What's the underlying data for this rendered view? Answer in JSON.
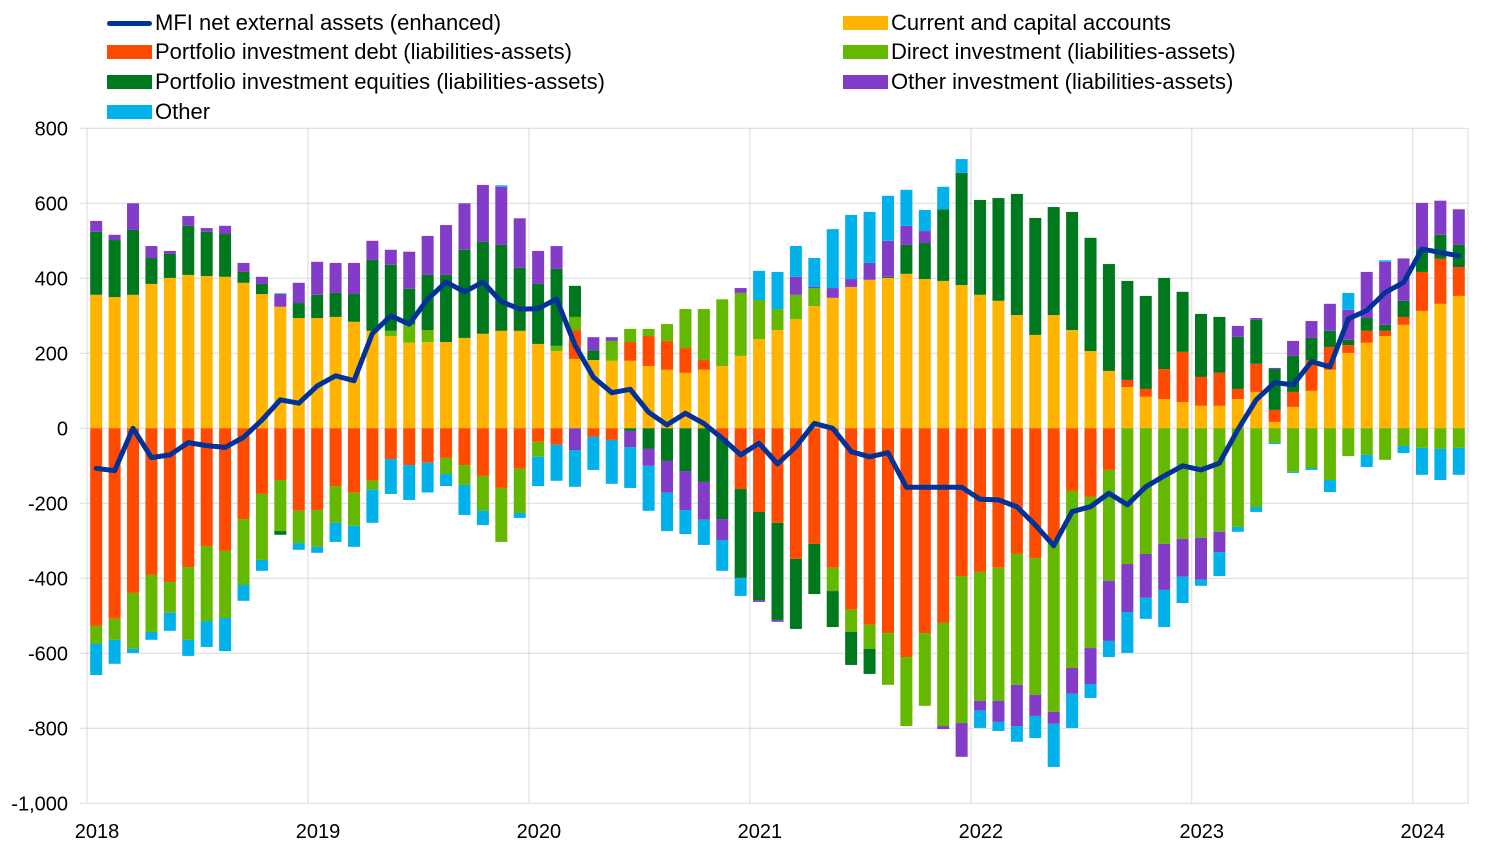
{
  "chart_data": {
    "type": "bar",
    "subtype": "stacked bar with line overlay",
    "title": "",
    "xlabel": "",
    "ylabel": "",
    "ylim": [
      -1000,
      800
    ],
    "yticks": [
      800,
      600,
      400,
      200,
      0,
      -200,
      -400,
      -600,
      -800,
      -1000
    ],
    "ytick_labels": [
      "800",
      "600",
      "400",
      "200",
      "0",
      "-200",
      "-400",
      "-600",
      "-800",
      "-1,000"
    ],
    "xtick_labels": [
      "2018",
      "2019",
      "2020",
      "2021",
      "2022",
      "2023",
      "2024"
    ],
    "grid": true,
    "legend_position": "top",
    "frequency": "monthly",
    "x_start": "2018-01",
    "x_end": "2024-03",
    "bar_series": [
      {
        "name": "Current and capital accounts",
        "color": "#FFB400",
        "values": [
          356,
          350,
          356,
          385,
          401,
          409,
          406,
          404,
          388,
          358,
          324,
          294,
          294,
          297,
          284,
          260,
          246,
          228,
          230,
          230,
          241,
          252,
          260,
          260,
          225,
          206,
          185,
          182,
          180,
          180,
          166,
          156,
          148,
          156,
          166,
          193,
          238,
          262,
          291,
          326,
          348,
          377,
          396,
          401,
          412,
          398,
          393,
          382,
          356,
          340,
          302,
          249,
          302,
          262,
          206,
          153,
          110,
          84,
          78,
          70,
          60,
          60,
          78,
          97,
          17,
          57,
          100,
          156,
          201,
          228,
          246,
          276,
          313,
          332,
          353
        ]
      },
      {
        "name": "Portfolio investment debt (liabilities-assets)",
        "color": "#FF4B00",
        "values": [
          -527,
          -508,
          -439,
          -391,
          -410,
          -370,
          -314,
          -327,
          -242,
          -175,
          -138,
          -220,
          -218,
          -154,
          -172,
          -140,
          -82,
          -98,
          -92,
          -79,
          -98,
          -127,
          -159,
          -108,
          -36,
          -44,
          77,
          -23,
          -31,
          50,
          80,
          77,
          66,
          26,
          -26,
          -162,
          -223,
          -252,
          -348,
          -308,
          -372,
          -484,
          -524,
          -546,
          -610,
          -546,
          -519,
          -394,
          -383,
          -372,
          -335,
          -346,
          -298,
          -167,
          -183,
          -111,
          19,
          21,
          80,
          134,
          77,
          88,
          27,
          75,
          32,
          40,
          82,
          61,
          21,
          32,
          14,
          21,
          104,
          120,
          77
        ]
      },
      {
        "name": "Direct investment (liabilities-assets)",
        "color": "#65B800",
        "values": [
          -48,
          -56,
          -149,
          -152,
          -82,
          -194,
          -200,
          -179,
          -176,
          -176,
          -136,
          -86,
          -98,
          -98,
          -88,
          -24,
          14,
          48,
          32,
          -43,
          -53,
          -93,
          -144,
          -118,
          -40,
          14,
          35,
          0,
          53,
          35,
          19,
          45,
          104,
          136,
          178,
          168,
          104,
          56,
          65,
          48,
          -62,
          -59,
          -64,
          -138,
          -184,
          -194,
          -275,
          -392,
          -344,
          -355,
          -349,
          -365,
          -458,
          -472,
          -403,
          -296,
          -362,
          -335,
          -308,
          -295,
          -292,
          -276,
          -263,
          -210,
          -39,
          -116,
          -106,
          -138,
          -74,
          -71,
          -84,
          -47,
          -52,
          -55,
          -52
        ]
      },
      {
        "name": "Portfolio investment equities (liabilities-assets)",
        "color": "#00781E",
        "values": [
          168,
          152,
          173,
          69,
          64,
          131,
          118,
          114,
          29,
          27,
          -10,
          40,
          62,
          64,
          74,
          189,
          176,
          96,
          147,
          179,
          235,
          245,
          229,
          168,
          160,
          205,
          83,
          26,
          0,
          -7,
          -55,
          -87,
          -114,
          -143,
          -216,
          -237,
          -235,
          -259,
          -187,
          -134,
          -96,
          -88,
          -67,
          3,
          77,
          96,
          191,
          299,
          253,
          274,
          323,
          312,
          288,
          315,
          302,
          285,
          264,
          248,
          243,
          160,
          168,
          149,
          139,
          117,
          109,
          96,
          59,
          43,
          14,
          34,
          16,
          43,
          61,
          64,
          59
        ]
      },
      {
        "name": "Other investment (liabilities-assets)",
        "color": "#833CC8",
        "values": [
          29,
          14,
          71,
          32,
          8,
          26,
          10,
          22,
          24,
          19,
          34,
          54,
          88,
          80,
          83,
          51,
          40,
          99,
          104,
          133,
          124,
          152,
          155,
          132,
          88,
          61,
          -58,
          35,
          10,
          -43,
          -45,
          -85,
          -104,
          -101,
          -56,
          13,
          -5,
          -5,
          48,
          3,
          26,
          21,
          45,
          96,
          51,
          32,
          -8,
          -90,
          -26,
          -56,
          -110,
          -56,
          -32,
          -69,
          -96,
          -160,
          -128,
          -117,
          -123,
          -101,
          -112,
          -54,
          29,
          5,
          3,
          40,
          45,
          72,
          80,
          123,
          168,
          113,
          123,
          91,
          95
        ]
      },
      {
        "name": "Other",
        "color": "#00B1EA",
        "values": [
          -83,
          -64,
          -11,
          -21,
          -48,
          -43,
          -69,
          -88,
          -42,
          -29,
          2,
          -18,
          -16,
          -51,
          -56,
          -88,
          -93,
          -93,
          -79,
          -32,
          -80,
          -38,
          4,
          -13,
          -78,
          -96,
          -98,
          -88,
          -117,
          -109,
          -120,
          -102,
          -64,
          -67,
          -82,
          -48,
          78,
          99,
          82,
          77,
          157,
          171,
          136,
          120,
          96,
          56,
          60,
          37,
          -46,
          -24,
          -42,
          -59,
          -115,
          -91,
          -37,
          -43,
          -109,
          -56,
          -99,
          -70,
          -16,
          -64,
          -13,
          -13,
          -3,
          -3,
          -5,
          -32,
          45,
          -32,
          4,
          -19,
          -72,
          -83,
          -72
        ]
      }
    ],
    "line_series": {
      "name": "MFI net external assets (enhanced)",
      "color": "#003299",
      "values": [
        -107,
        -113,
        0,
        -78,
        -71,
        -38,
        -46,
        -51,
        -24,
        22,
        76,
        67,
        113,
        140,
        127,
        253,
        300,
        278,
        344,
        390,
        364,
        390,
        338,
        318,
        319,
        345,
        222,
        136,
        95,
        104,
        43,
        9,
        40,
        13,
        -27,
        -71,
        -40,
        -95,
        -49,
        13,
        0,
        -62,
        -76,
        -65,
        -157,
        -157,
        -157,
        -157,
        -189,
        -191,
        -209,
        -258,
        -313,
        -222,
        -209,
        -173,
        -204,
        -156,
        -127,
        -100,
        -111,
        -93,
        -4,
        76,
        122,
        116,
        178,
        164,
        292,
        314,
        362,
        389,
        478,
        469,
        460
      ]
    },
    "legend": [
      {
        "label": "MFI net external assets (enhanced)",
        "kind": "line",
        "color": "#003299"
      },
      {
        "label": "Current and capital accounts",
        "kind": "bar",
        "color": "#FFB400"
      },
      {
        "label": "Portfolio investment debt (liabilities-assets)",
        "kind": "bar",
        "color": "#FF4B00"
      },
      {
        "label": "Direct investment (liabilities-assets)",
        "kind": "bar",
        "color": "#65B800"
      },
      {
        "label": "Portfolio investment equities (liabilities-assets)",
        "kind": "bar",
        "color": "#00781E"
      },
      {
        "label": "Other investment (liabilities-assets)",
        "kind": "bar",
        "color": "#833CC8"
      },
      {
        "label": "Other",
        "kind": "bar",
        "color": "#00B1EA"
      }
    ]
  }
}
